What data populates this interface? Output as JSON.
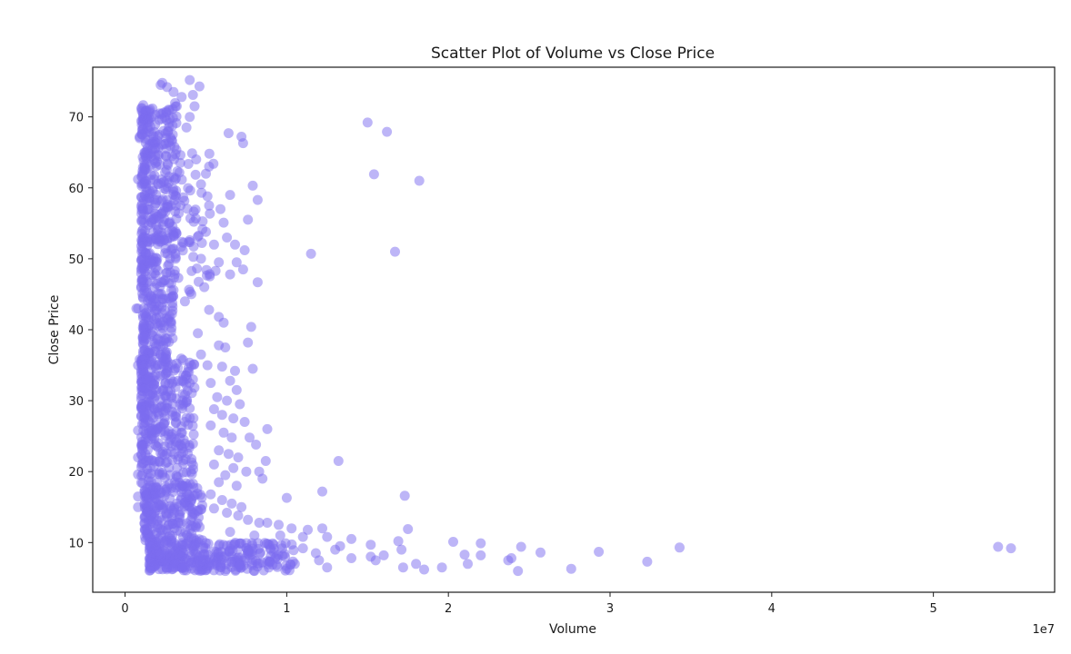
{
  "chart_data": {
    "type": "scatter",
    "title": "Scatter Plot of Volume vs Close Price",
    "xlabel": "Volume",
    "ylabel": "Close Price",
    "x_offset_label": "1e7",
    "xlim": [
      -2000000,
      57500000
    ],
    "ylim": [
      3,
      77
    ],
    "x_ticks": [
      0,
      10000000,
      20000000,
      30000000,
      40000000,
      50000000
    ],
    "x_tick_labels": [
      "0",
      "1",
      "2",
      "3",
      "4",
      "5"
    ],
    "y_ticks": [
      10,
      20,
      30,
      40,
      50,
      60,
      70
    ],
    "y_tick_labels": [
      "10",
      "20",
      "30",
      "40",
      "50",
      "60",
      "70"
    ],
    "grid": false,
    "legend": false,
    "marker_color": "#7b6cf0",
    "marker_alpha": 0.5,
    "clusters_note": "dense column 1e6–4e6 volume spanning ~6–75 price",
    "series": [
      {
        "points": [
          [
            2300000,
            74.8
          ],
          [
            2600000,
            74.2
          ],
          [
            3000000,
            73.5
          ],
          [
            4000000,
            75.2
          ],
          [
            4600000,
            74.3
          ],
          [
            3500000,
            72.8
          ],
          [
            4200000,
            73.1
          ],
          [
            4300000,
            71.5
          ],
          [
            4000000,
            70.0
          ],
          [
            3800000,
            68.5
          ],
          [
            900000,
            67.2
          ],
          [
            1100000,
            69.8
          ],
          [
            6400000,
            67.7
          ],
          [
            7200000,
            67.2
          ],
          [
            7300000,
            66.3
          ],
          [
            15000000,
            69.2
          ],
          [
            16200000,
            67.9
          ],
          [
            15400000,
            61.9
          ],
          [
            18200000,
            61.0
          ],
          [
            4400000,
            64.0
          ],
          [
            5200000,
            63.0
          ],
          [
            5000000,
            62.0
          ],
          [
            4700000,
            60.5
          ],
          [
            6500000,
            59.0
          ],
          [
            7900000,
            60.3
          ],
          [
            8200000,
            58.3
          ],
          [
            5200000,
            57.5
          ],
          [
            5900000,
            57.0
          ],
          [
            6100000,
            55.1
          ],
          [
            7600000,
            55.5
          ],
          [
            5000000,
            53.8
          ],
          [
            6300000,
            53.0
          ],
          [
            5500000,
            52.0
          ],
          [
            6800000,
            52.0
          ],
          [
            7400000,
            51.2
          ],
          [
            11500000,
            50.7
          ],
          [
            16700000,
            51.0
          ],
          [
            4700000,
            50.0
          ],
          [
            5800000,
            49.5
          ],
          [
            6900000,
            49.5
          ],
          [
            7300000,
            48.5
          ],
          [
            5600000,
            48.3
          ],
          [
            6500000,
            47.8
          ],
          [
            8200000,
            46.7
          ],
          [
            4900000,
            46.0
          ],
          [
            4100000,
            45.0
          ],
          [
            3700000,
            44.0
          ],
          [
            700000,
            43.0
          ],
          [
            5200000,
            42.8
          ],
          [
            5800000,
            41.8
          ],
          [
            6100000,
            41.0
          ],
          [
            7800000,
            40.4
          ],
          [
            4500000,
            39.5
          ],
          [
            7600000,
            38.2
          ],
          [
            5800000,
            37.8
          ],
          [
            6200000,
            37.5
          ],
          [
            4700000,
            36.5
          ],
          [
            5100000,
            35.0
          ],
          [
            6000000,
            34.8
          ],
          [
            6800000,
            34.2
          ],
          [
            7900000,
            34.5
          ],
          [
            900000,
            35.8
          ],
          [
            4200000,
            33.0
          ],
          [
            5300000,
            32.5
          ],
          [
            6500000,
            32.8
          ],
          [
            6900000,
            31.5
          ],
          [
            5700000,
            30.5
          ],
          [
            6300000,
            30.0
          ],
          [
            7100000,
            29.5
          ],
          [
            5500000,
            28.8
          ],
          [
            6000000,
            28.0
          ],
          [
            6700000,
            27.5
          ],
          [
            7400000,
            27.0
          ],
          [
            8800000,
            26.0
          ],
          [
            5300000,
            26.5
          ],
          [
            6100000,
            25.5
          ],
          [
            6600000,
            24.8
          ],
          [
            7700000,
            24.8
          ],
          [
            8100000,
            23.8
          ],
          [
            5800000,
            23.0
          ],
          [
            6400000,
            22.5
          ],
          [
            7000000,
            22.0
          ],
          [
            8700000,
            21.5
          ],
          [
            13200000,
            21.5
          ],
          [
            5500000,
            21.0
          ],
          [
            6700000,
            20.5
          ],
          [
            7500000,
            20.0
          ],
          [
            8300000,
            20.0
          ],
          [
            8500000,
            19.0
          ],
          [
            6200000,
            19.5
          ],
          [
            5800000,
            18.5
          ],
          [
            6900000,
            18.0
          ],
          [
            12200000,
            17.2
          ],
          [
            17300000,
            16.6
          ],
          [
            10000000,
            16.3
          ],
          [
            5300000,
            16.8
          ],
          [
            6000000,
            16.0
          ],
          [
            6600000,
            15.5
          ],
          [
            7200000,
            15.0
          ],
          [
            5500000,
            14.8
          ],
          [
            6300000,
            14.2
          ],
          [
            7000000,
            13.8
          ],
          [
            7600000,
            13.2
          ],
          [
            8300000,
            12.8
          ],
          [
            8800000,
            12.8
          ],
          [
            9500000,
            12.5
          ],
          [
            10300000,
            12.0
          ],
          [
            11300000,
            11.8
          ],
          [
            12200000,
            12.0
          ],
          [
            17500000,
            11.9
          ],
          [
            6500000,
            11.5
          ],
          [
            8000000,
            11.0
          ],
          [
            9600000,
            11.0
          ],
          [
            11000000,
            10.8
          ],
          [
            12500000,
            10.8
          ],
          [
            14000000,
            10.5
          ],
          [
            16900000,
            10.2
          ],
          [
            20300000,
            10.1
          ],
          [
            22000000,
            9.9
          ],
          [
            15200000,
            9.7
          ],
          [
            24500000,
            9.4
          ],
          [
            34300000,
            9.3
          ],
          [
            54000000,
            9.4
          ],
          [
            54800000,
            9.2
          ],
          [
            17100000,
            9.0
          ],
          [
            13000000,
            9.0
          ],
          [
            11000000,
            9.2
          ],
          [
            9000000,
            9.0
          ],
          [
            7500000,
            9.2
          ],
          [
            21000000,
            8.3
          ],
          [
            22000000,
            8.2
          ],
          [
            25700000,
            8.6
          ],
          [
            29300000,
            8.7
          ],
          [
            23900000,
            7.8
          ],
          [
            23700000,
            7.5
          ],
          [
            32300000,
            7.3
          ],
          [
            18000000,
            7.0
          ],
          [
            15500000,
            7.5
          ],
          [
            14000000,
            7.8
          ],
          [
            12000000,
            7.5
          ],
          [
            10500000,
            7.0
          ],
          [
            8500000,
            7.2
          ],
          [
            7000000,
            7.5
          ],
          [
            5500000,
            7.5
          ],
          [
            19600000,
            6.5
          ],
          [
            18500000,
            6.2
          ],
          [
            24300000,
            6.0
          ],
          [
            27600000,
            6.3
          ],
          [
            12500000,
            6.5
          ],
          [
            10000000,
            6.3
          ],
          [
            8000000,
            6.0
          ],
          [
            6200000,
            6.0
          ],
          [
            4500000,
            6.2
          ],
          [
            3500000,
            6.5
          ],
          [
            21200000,
            7.0
          ],
          [
            16000000,
            8.2
          ],
          [
            17200000,
            6.5
          ],
          [
            15200000,
            8.0
          ],
          [
            13300000,
            9.5
          ],
          [
            11800000,
            8.5
          ],
          [
            800000,
            61.2
          ],
          [
            800000,
            43.0
          ],
          [
            800000,
            35.0
          ],
          [
            800000,
            25.8
          ],
          [
            800000,
            22.0
          ],
          [
            800000,
            19.6
          ],
          [
            800000,
            16.5
          ],
          [
            800000,
            15.0
          ],
          [
            900000,
            67.0
          ],
          [
            2200000,
            74.5
          ]
        ]
      }
    ]
  }
}
